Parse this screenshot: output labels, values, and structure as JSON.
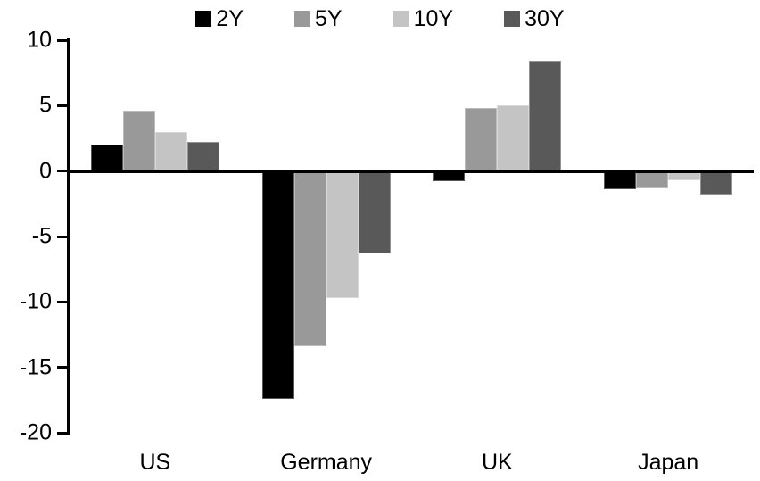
{
  "chart_data": {
    "type": "bar",
    "title": "",
    "subtitle": "",
    "xlabel": "",
    "ylabel": "",
    "categories": [
      "US",
      "Germany",
      "UK",
      "Japan"
    ],
    "series": [
      {
        "name": "2Y",
        "color": "#000000",
        "values": [
          2.0,
          -17.4,
          -0.8,
          -1.4
        ]
      },
      {
        "name": "5Y",
        "color": "#999999",
        "values": [
          4.6,
          -13.4,
          4.8,
          -1.3
        ]
      },
      {
        "name": "10Y",
        "color": "#c4c4c4",
        "values": [
          3.0,
          -9.7,
          5.0,
          -0.7
        ]
      },
      {
        "name": "30Y",
        "color": "#595959",
        "values": [
          2.2,
          -6.3,
          8.4,
          -1.8
        ]
      }
    ],
    "ylim": [
      -20,
      10
    ],
    "yticks": [
      10,
      5,
      0,
      -5,
      -10,
      -15,
      -20
    ],
    "grid": false,
    "legend_position": "top",
    "baseline": 0
  },
  "colors": {
    "background": "#ffffff",
    "axis": "#000000",
    "text": "#000000"
  }
}
